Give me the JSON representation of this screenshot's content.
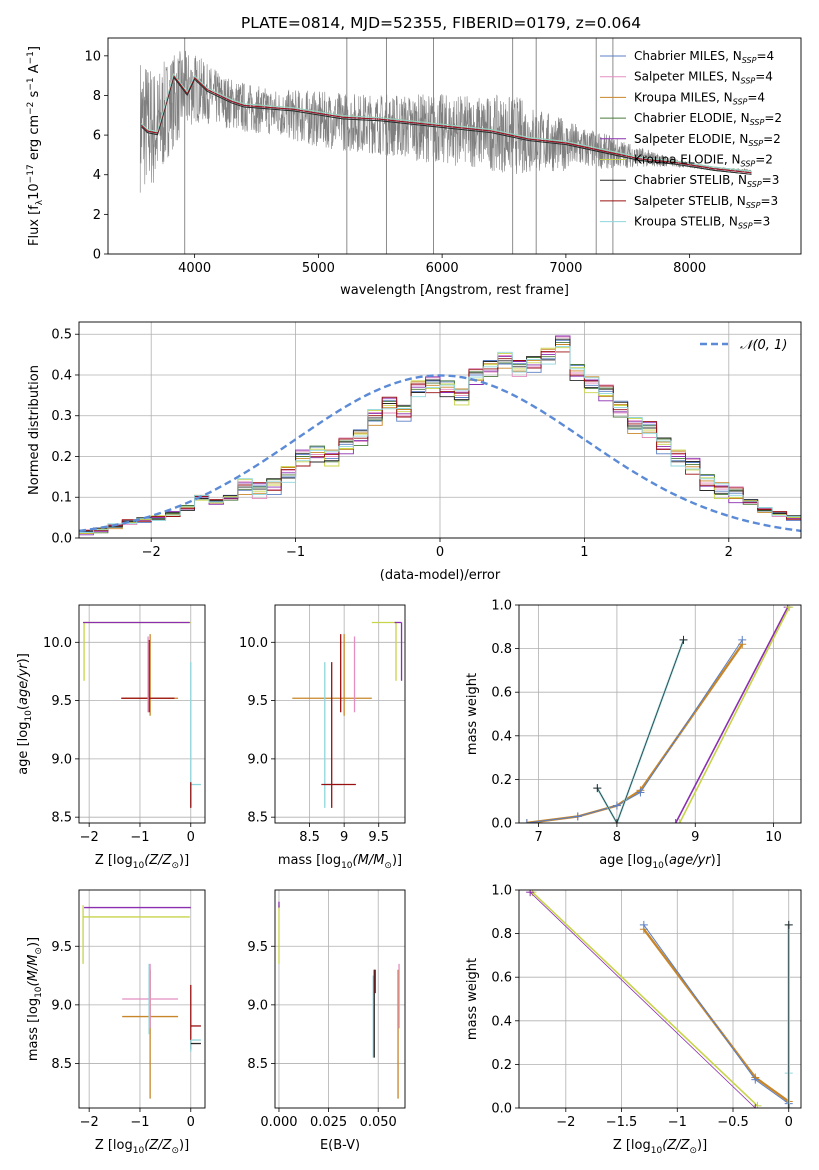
{
  "page_title": "PLATE=0814, MJD=52355, FIBERID=0179, z=0.064",
  "series_colors": [
    "#5b7fc4",
    "#e38fc0",
    "#c8862a",
    "#4b7a3c",
    "#8b2fb0",
    "#c8d44a",
    "#2a2a2a",
    "#9a1010",
    "#8fd6dc"
  ],
  "chart_data": [
    {
      "id": "spectrum",
      "type": "line",
      "title": "PLATE=0814, MJD=52355, FIBERID=0179, z=0.064",
      "xlabel": "wavelength [Angstrom, rest frame]",
      "ylabel": "Flux [f",
      "ylabel_parts": [
        "Flux [f",
        "λ",
        "10",
        "−17",
        " erg cm",
        "−2",
        " s",
        "−1",
        " A",
        "−1",
        "]"
      ],
      "xlim": [
        3300,
        8900
      ],
      "ylim": [
        0,
        10.9
      ],
      "xticks": [
        4000,
        5000,
        6000,
        7000,
        8000
      ],
      "yticks": [
        0,
        2,
        4,
        6,
        8,
        10
      ],
      "grid": false,
      "legend_position": "top-right",
      "legend": [
        {
          "label": "Chabrier MILES, N",
          "sub": "SSP",
          "suffix": "=4"
        },
        {
          "label": "Salpeter MILES, N",
          "sub": "SSP",
          "suffix": "=4"
        },
        {
          "label": "Kroupa MILES, N",
          "sub": "SSP",
          "suffix": "=4"
        },
        {
          "label": "Chabrier ELODIE, N",
          "sub": "SSP",
          "suffix": "=2"
        },
        {
          "label": "Salpeter ELODIE, N",
          "sub": "SSP",
          "suffix": "=2"
        },
        {
          "label": "Kroupa ELODIE, N",
          "sub": "SSP",
          "suffix": "=2"
        },
        {
          "label": "Chabrier STELIB, N",
          "sub": "SSP",
          "suffix": "=3"
        },
        {
          "label": "Salpeter STELIB, N",
          "sub": "SSP",
          "suffix": "=3"
        },
        {
          "label": "Kroupa STELIB, N",
          "sub": "SSP",
          "suffix": "=3"
        }
      ],
      "data_series": {
        "name": "data",
        "color": "#808080",
        "envelope_x": [
          3560,
          3700,
          3800,
          3900,
          4000,
          4100,
          4200,
          4300,
          4400,
          4500,
          4600,
          4700,
          4800,
          4900,
          5000,
          5200,
          5400,
          5600,
          5800,
          6000,
          6200,
          6400,
          6600,
          6800,
          7000,
          7200,
          7400,
          7600,
          7800,
          8000,
          8200,
          8500
        ],
        "envelope_mid": [
          6.6,
          6.3,
          7.6,
          8.1,
          8.4,
          8.1,
          7.8,
          7.6,
          7.4,
          7.3,
          7.2,
          7.1,
          7.0,
          6.9,
          6.8,
          6.7,
          6.6,
          6.5,
          6.4,
          6.3,
          6.2,
          6.1,
          6.0,
          5.7,
          5.5,
          5.3,
          5.1,
          4.9,
          4.7,
          4.5,
          4.3,
          4.2
        ],
        "envelope_amp": [
          3.5,
          3.0,
          2.5,
          2.2,
          1.8,
          1.5,
          1.4,
          1.3,
          1.3,
          1.2,
          1.2,
          1.2,
          1.3,
          1.4,
          1.4,
          1.5,
          1.5,
          1.6,
          1.7,
          1.8,
          1.8,
          1.9,
          2.0,
          1.6,
          1.3,
          1.0,
          0.8,
          0.5,
          0.3,
          0.15,
          0.1,
          0.08
        ],
        "spikes_x": [
          3920,
          5230,
          5550,
          5930,
          6570,
          6760,
          7245,
          7380
        ]
      },
      "model_x": [
        3570,
        3620,
        3700,
        3760,
        3830,
        3880,
        3940,
        4000,
        4100,
        4200,
        4300,
        4400,
        4600,
        4800,
        5000,
        5200,
        5500,
        5800,
        6100,
        6400,
        6700,
        7000,
        7300,
        7600,
        7900,
        8200,
        8500
      ],
      "model_y": [
        6.5,
        6.2,
        6.1,
        7.4,
        9.0,
        8.6,
        8.1,
        8.9,
        8.3,
        8.0,
        7.7,
        7.5,
        7.4,
        7.3,
        7.1,
        6.9,
        6.8,
        6.6,
        6.4,
        6.2,
        5.8,
        5.6,
        5.2,
        4.8,
        4.6,
        4.3,
        4.1
      ]
    },
    {
      "id": "residuals",
      "type": "line",
      "xlabel": "(data-model)/error",
      "ylabel": "Normed distribution",
      "xlim": [
        -2.5,
        2.5
      ],
      "ylim": [
        0,
        0.53
      ],
      "xticks": [
        -2,
        -1,
        0,
        1,
        2
      ],
      "yticks": [
        0.0,
        0.1,
        0.2,
        0.3,
        0.4,
        0.5
      ],
      "grid": true,
      "legend_position": "top-right",
      "gauss_label": "𝒩(0, 1)",
      "gauss_color": "#5b8ad6",
      "bin_width": 0.1,
      "bin_start": -2.5,
      "hist_base": [
        0.015,
        0.02,
        0.03,
        0.04,
        0.045,
        0.05,
        0.06,
        0.075,
        0.1,
        0.09,
        0.1,
        0.13,
        0.12,
        0.13,
        0.16,
        0.2,
        0.21,
        0.2,
        0.23,
        0.25,
        0.3,
        0.33,
        0.31,
        0.37,
        0.38,
        0.37,
        0.35,
        0.4,
        0.42,
        0.44,
        0.42,
        0.43,
        0.45,
        0.48,
        0.41,
        0.38,
        0.36,
        0.32,
        0.28,
        0.27,
        0.23,
        0.2,
        0.18,
        0.14,
        0.12,
        0.11,
        0.09,
        0.07,
        0.06,
        0.05,
        0.045,
        0.04,
        0.035,
        0.03,
        0.03,
        0.025,
        0.025,
        0.02,
        0.02,
        0.02
      ]
    },
    {
      "id": "age-vs-Z",
      "type": "scatter",
      "xlabel": "Z [log",
      "ylabel": "age  [log",
      "xlabel_parts": [
        "Z [log",
        "10",
        "(Z/Z",
        "⊙",
        ")]"
      ],
      "ylabel_parts": [
        "age  [log",
        "10",
        "(",
        "age/yr",
        ")]"
      ],
      "xlim": [
        -2.2,
        0.28
      ],
      "ylim": [
        8.45,
        10.32
      ],
      "xticks": [
        -2,
        -1,
        0
      ],
      "yticks": [
        8.5,
        9.0,
        9.5,
        10.0
      ],
      "grid": true,
      "points": [
        {
          "x": -2.1,
          "y": 10.17,
          "xerr": [
            0.0,
            2.1
          ],
          "yerr": [
            0.5,
            0.0
          ],
          "c": 5
        },
        {
          "x": -2.12,
          "y": 10.17,
          "xerr": [
            0.0,
            2.1
          ],
          "yerr": [
            0.0,
            0.0
          ],
          "c": 4
        },
        {
          "x": -0.8,
          "y": 9.52,
          "xerr": [
            0.55,
            0.55
          ],
          "yerr": [
            0.15,
            0.55
          ],
          "c": 2
        },
        {
          "x": -0.82,
          "y": 9.52,
          "xerr": [
            0.55,
            0.5
          ],
          "yerr": [
            0.12,
            0.5
          ],
          "c": 7
        },
        {
          "x": -0.84,
          "y": 9.7,
          "xerr": [
            0.0,
            0.0
          ],
          "yerr": [
            0.3,
            0.35
          ],
          "c": 1
        },
        {
          "x": 0.0,
          "y": 8.78,
          "xerr": [
            0.0,
            0.2
          ],
          "yerr": [
            0.2,
            1.05
          ],
          "c": 8
        },
        {
          "x": 0.0,
          "y": 8.7,
          "xerr": [
            0.0,
            0.0
          ],
          "yerr": [
            0.12,
            0.1
          ],
          "c": 7
        }
      ]
    },
    {
      "id": "age-vs-mass",
      "type": "scatter",
      "xlabel": "mass [log",
      "ylabel": "",
      "xlabel_parts": [
        "mass [log",
        "10",
        "(M/M",
        "⊙",
        ")]"
      ],
      "xlim": [
        8.0,
        9.88
      ],
      "ylim": [
        8.45,
        10.32
      ],
      "xticks": [
        8.5,
        9.0,
        9.5
      ],
      "yticks": [
        8.5,
        9.0,
        9.5,
        10.0
      ],
      "grid": true,
      "points": [
        {
          "x": 9.0,
          "y": 9.52,
          "xerr": [
            0.75,
            0.4
          ],
          "yerr": [
            0.15,
            0.55
          ],
          "c": 2
        },
        {
          "x": 8.95,
          "y": 9.52,
          "xerr": [
            0.0,
            0.0
          ],
          "yerr": [
            0.12,
            0.55
          ],
          "c": 7
        },
        {
          "x": 9.15,
          "y": 9.7,
          "xerr": [
            0.0,
            0.0
          ],
          "yerr": [
            0.3,
            0.35
          ],
          "c": 1
        },
        {
          "x": 8.72,
          "y": 8.78,
          "xerr": [
            0.0,
            0.25
          ],
          "yerr": [
            0.2,
            1.05
          ],
          "c": 8
        },
        {
          "x": 8.82,
          "y": 8.78,
          "xerr": [
            0.15,
            0.35
          ],
          "yerr": [
            0.2,
            1.05
          ],
          "c": 7
        },
        {
          "x": 9.75,
          "y": 10.17,
          "xerr": [
            0.35,
            0.0
          ],
          "yerr": [
            0.5,
            0.0
          ],
          "c": 5
        },
        {
          "x": 9.83,
          "y": 10.17,
          "xerr": [
            0.1,
            0.0
          ],
          "yerr": [
            0.5,
            0.0
          ],
          "c": 4
        }
      ]
    },
    {
      "id": "massweight-vs-age",
      "type": "line",
      "xlabel": "age  [log",
      "ylabel": "mass weight",
      "xlabel_parts": [
        "age  [log",
        "10",
        "(",
        "age/yr",
        ")]"
      ],
      "xlim": [
        6.75,
        10.35
      ],
      "ylim": [
        0,
        1.0
      ],
      "xticks": [
        7,
        8,
        9,
        10
      ],
      "yticks": [
        0.0,
        0.2,
        0.4,
        0.6,
        0.8,
        1.0
      ],
      "grid": true,
      "lines": [
        {
          "x": [
            6.85,
            7.5,
            8.0,
            8.3,
            9.6
          ],
          "y": [
            0.0,
            0.03,
            0.08,
            0.15,
            0.82
          ],
          "c": 2,
          "w": 2.4
        },
        {
          "x": [
            6.85,
            7.5,
            8.0,
            8.3,
            9.6
          ],
          "y": [
            0.0,
            0.03,
            0.08,
            0.14,
            0.84
          ],
          "c": 0,
          "w": 1
        },
        {
          "x": [
            7.75,
            8.0,
            8.85
          ],
          "y": [
            0.16,
            0.0,
            0.84
          ],
          "c": 8,
          "w": 2
        },
        {
          "x": [
            7.75,
            8.0,
            8.85
          ],
          "y": [
            0.16,
            0.0,
            0.84
          ],
          "c": 6,
          "w": 0.7
        },
        {
          "x": [
            8.75,
            10.18
          ],
          "y": [
            0.0,
            0.99
          ],
          "c": 4,
          "w": 1.6
        },
        {
          "x": [
            8.8,
            10.2
          ],
          "y": [
            0.0,
            0.99
          ],
          "c": 5,
          "w": 1.6
        }
      ]
    },
    {
      "id": "mass-vs-Z",
      "type": "scatter",
      "xlabel": "Z [log",
      "ylabel": "mass [log",
      "xlabel_parts": [
        "Z [log",
        "10",
        "(Z/Z",
        "⊙",
        ")]"
      ],
      "ylabel_parts": [
        "mass [log",
        "10",
        "(M/M",
        "⊙",
        ")]"
      ],
      "xlim": [
        -2.2,
        0.28
      ],
      "ylim": [
        8.12,
        9.98
      ],
      "xticks": [
        -2,
        -1,
        0
      ],
      "yticks": [
        8.5,
        9.0,
        9.5
      ],
      "grid": true,
      "points": [
        {
          "x": -2.1,
          "y": 9.83,
          "xerr": [
            0.0,
            2.1
          ],
          "yerr": [
            0.0,
            0.0
          ],
          "c": 4
        },
        {
          "x": -2.12,
          "y": 9.75,
          "xerr": [
            0.0,
            2.1
          ],
          "yerr": [
            0.4,
            0.1
          ],
          "c": 5
        },
        {
          "x": -0.8,
          "y": 8.9,
          "xerr": [
            0.55,
            0.55
          ],
          "yerr": [
            0.7,
            0.4
          ],
          "c": 2
        },
        {
          "x": -0.8,
          "y": 9.05,
          "xerr": [
            0.55,
            0.55
          ],
          "yerr": [
            0.25,
            0.3
          ],
          "c": 1
        },
        {
          "x": -0.82,
          "y": 9.0,
          "xerr": [
            0.0,
            0.0
          ],
          "yerr": [
            0.25,
            0.35
          ],
          "c": 8
        },
        {
          "x": 0.0,
          "y": 8.82,
          "xerr": [
            0.0,
            0.2
          ],
          "yerr": [
            0.2,
            0.35
          ],
          "c": 7
        },
        {
          "x": 0.0,
          "y": 8.7,
          "xerr": [
            0.0,
            0.2
          ],
          "yerr": [
            0.1,
            0.0
          ],
          "c": 8
        },
        {
          "x": 0.0,
          "y": 8.67,
          "xerr": [
            0.0,
            0.2
          ],
          "yerr": [
            0.0,
            0.0
          ],
          "c": 6
        }
      ]
    },
    {
      "id": "mass-vs-ebv",
      "type": "scatter",
      "xlabel": "E(B-V)",
      "ylabel": "",
      "xlim": [
        -0.002,
        0.0635
      ],
      "ylim": [
        8.12,
        9.98
      ],
      "xticks": [
        0.0,
        0.025,
        0.05
      ],
      "xtick_labels": [
        "0.000",
        "0.025",
        "0.050"
      ],
      "yticks": [
        8.5,
        9.0,
        9.5
      ],
      "grid": true,
      "points": [
        {
          "x": 0.0,
          "y": 9.75,
          "xerr": [
            0.0,
            0.0
          ],
          "yerr": [
            0.4,
            0.1
          ],
          "c": 5
        },
        {
          "x": 0.0,
          "y": 9.83,
          "xerr": [
            0.0,
            0.0
          ],
          "yerr": [
            0.0,
            0.05
          ],
          "c": 4
        },
        {
          "x": 0.0475,
          "y": 8.9,
          "xerr": [
            0.0,
            0.0
          ],
          "yerr": [
            0.35,
            0.35
          ],
          "c": 8
        },
        {
          "x": 0.048,
          "y": 9.0,
          "xerr": [
            0.0,
            0.0
          ],
          "yerr": [
            0.45,
            0.3
          ],
          "c": 6
        },
        {
          "x": 0.0485,
          "y": 9.1,
          "xerr": [
            0.0,
            0.0
          ],
          "yerr": [
            0.0,
            0.2
          ],
          "c": 7
        },
        {
          "x": 0.06,
          "y": 8.9,
          "xerr": [
            0.0,
            0.0
          ],
          "yerr": [
            0.7,
            0.4
          ],
          "c": 2
        },
        {
          "x": 0.0605,
          "y": 9.0,
          "xerr": [
            0.0,
            0.0
          ],
          "yerr": [
            0.2,
            0.35
          ],
          "c": 1
        }
      ]
    },
    {
      "id": "massweight-vs-Z",
      "type": "line",
      "xlabel": "Z [log",
      "ylabel": "mass weight",
      "xlabel_parts": [
        "Z [log",
        "10",
        "(Z/Z",
        "⊙",
        ")]"
      ],
      "xlim": [
        -2.42,
        0.11
      ],
      "ylim": [
        0,
        1.0
      ],
      "xticks": [
        -2.0,
        -1.5,
        -1.0,
        -0.5,
        0.0
      ],
      "yticks": [
        0.0,
        0.2,
        0.4,
        0.6,
        0.8,
        1.0
      ],
      "grid": true,
      "lines": [
        {
          "x": [
            -1.3,
            -0.3,
            0.0
          ],
          "y": [
            0.82,
            0.14,
            0.03
          ],
          "c": 2,
          "w": 2.4
        },
        {
          "x": [
            -1.3,
            -0.3,
            0.0
          ],
          "y": [
            0.84,
            0.13,
            0.02
          ],
          "c": 0,
          "w": 1
        },
        {
          "x": [
            -2.3,
            -0.28
          ],
          "y": [
            0.99,
            0.01
          ],
          "c": 5,
          "w": 1.6
        },
        {
          "x": [
            -2.32,
            -0.3
          ],
          "y": [
            0.99,
            0.0
          ],
          "c": 4,
          "w": 0.8
        },
        {
          "x": [
            0.0,
            0.0,
            0.0
          ],
          "y": [
            0.0,
            0.16,
            0.84
          ],
          "c": 8,
          "w": 2.4
        },
        {
          "x": [
            0.0,
            0.0
          ],
          "y": [
            0.0,
            0.84
          ],
          "c": 6,
          "w": 0.7
        }
      ]
    }
  ]
}
